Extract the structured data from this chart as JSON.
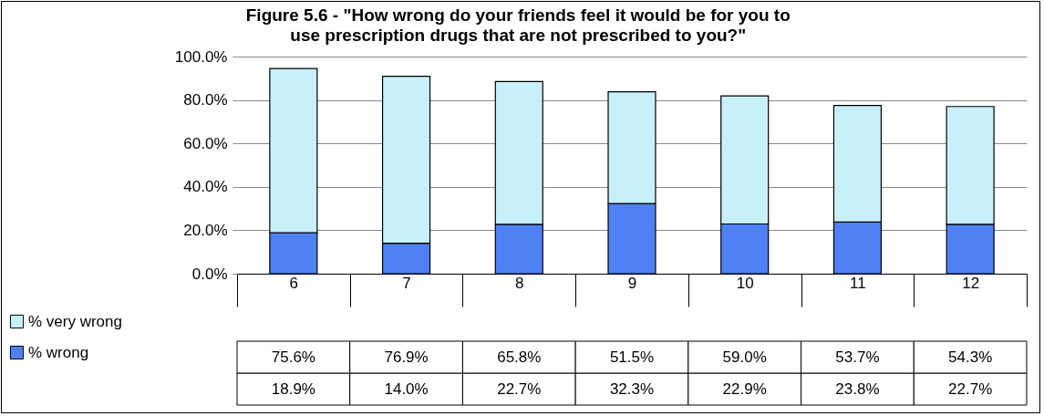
{
  "chart_data": {
    "type": "bar",
    "title": "Figure 5.6 - \"How wrong do your friends feel it would be for you to use prescription drugs that are not prescribed to you?\"",
    "categories": [
      "6",
      "7",
      "8",
      "9",
      "10",
      "11",
      "12"
    ],
    "stacked": true,
    "series": [
      {
        "name": "% wrong",
        "color": "#4f81f5",
        "values": [
          18.9,
          14.0,
          22.7,
          32.3,
          22.9,
          23.8,
          22.7
        ],
        "value_labels": [
          "18.9%",
          "14.0%",
          "22.7%",
          "32.3%",
          "22.9%",
          "23.8%",
          "22.7%"
        ]
      },
      {
        "name": "% very wrong",
        "color": "#c8f0fb",
        "values": [
          75.6,
          76.9,
          65.8,
          51.5,
          59.0,
          53.7,
          54.3
        ],
        "value_labels": [
          "75.6%",
          "76.9%",
          "65.8%",
          "51.5%",
          "59.0%",
          "53.7%",
          "54.3%"
        ]
      }
    ],
    "ylim": [
      0,
      100
    ],
    "yticks": [
      {
        "value": 0,
        "label": "0.0%"
      },
      {
        "value": 20,
        "label": "20.0%"
      },
      {
        "value": 40,
        "label": "40.0%"
      },
      {
        "value": 60,
        "label": "60.0%"
      },
      {
        "value": 80,
        "label": "80.0%"
      },
      {
        "value": 100,
        "label": "100.0%"
      }
    ],
    "grid": "y",
    "legend": "bottom left"
  }
}
